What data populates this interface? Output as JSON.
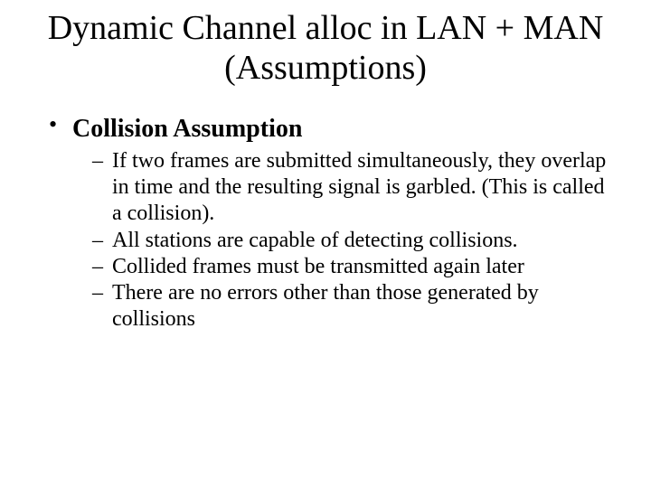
{
  "title": "Dynamic Channel alloc in LAN + MAN (Assumptions)",
  "bullets": [
    {
      "heading": "Collision Assumption",
      "subitems": [
        "If two frames are submitted simultaneously, they overlap in time and the resulting signal is garbled. (This is called a collision).",
        "All stations are capable of detecting collisions.",
        "Collided frames must be transmitted again later",
        "There are no errors other than those generated by collisions"
      ]
    }
  ],
  "colors": {
    "background": "#ffffff",
    "text": "#000000"
  },
  "typography": {
    "title_fontsize": 38,
    "bullet_heading_fontsize": 28,
    "subitem_fontsize": 24,
    "font_family": "Times New Roman"
  }
}
